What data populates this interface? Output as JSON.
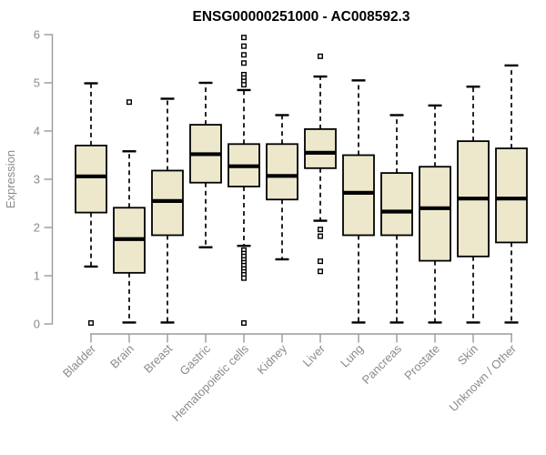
{
  "chart_data": {
    "type": "boxplot",
    "title": "ENSG00000251000 - AC008592.3",
    "xlabel": "",
    "ylabel": "Expression",
    "ylim": [
      0,
      6
    ],
    "yticks": [
      0,
      1,
      2,
      3,
      4,
      5,
      6
    ],
    "grid": false,
    "legend": "none",
    "categories": [
      "Bladder",
      "Brain",
      "Breast",
      "Gastric",
      "Hematopoietic cells",
      "Kidney",
      "Liver",
      "Lung",
      "Pancreas",
      "Prostate",
      "Skin",
      "Unknown / Other"
    ],
    "series": [
      {
        "name": "Bladder",
        "whisker_low": 1.19,
        "q1": 2.31,
        "median": 3.06,
        "q3": 3.7,
        "whisker_high": 4.99,
        "outliers": [
          0.02
        ]
      },
      {
        "name": "Brain",
        "whisker_low": 0.03,
        "q1": 1.06,
        "median": 1.76,
        "q3": 2.41,
        "whisker_high": 3.58,
        "outliers": [
          4.6
        ]
      },
      {
        "name": "Breast",
        "whisker_low": 0.03,
        "q1": 1.84,
        "median": 2.55,
        "q3": 3.18,
        "whisker_high": 4.67,
        "outliers": []
      },
      {
        "name": "Gastric",
        "whisker_low": 1.59,
        "q1": 2.93,
        "median": 3.52,
        "q3": 4.13,
        "whisker_high": 5.0,
        "outliers": []
      },
      {
        "name": "Hematopoietic cells",
        "whisker_low": 1.62,
        "q1": 2.85,
        "median": 3.27,
        "q3": 3.73,
        "whisker_high": 4.85,
        "outliers": [
          5.94,
          5.76,
          5.58,
          5.41,
          5.17,
          5.1,
          5.03,
          4.96,
          1.53,
          1.46,
          1.4,
          1.33,
          1.27,
          1.21,
          1.14,
          1.08,
          1.02,
          0.95,
          0.02
        ]
      },
      {
        "name": "Kidney",
        "whisker_low": 1.34,
        "q1": 2.58,
        "median": 3.07,
        "q3": 3.73,
        "whisker_high": 4.33,
        "outliers": []
      },
      {
        "name": "Liver",
        "whisker_low": 2.14,
        "q1": 3.23,
        "median": 3.55,
        "q3": 4.04,
        "whisker_high": 5.13,
        "outliers": [
          5.55,
          1.96,
          1.82,
          1.3,
          1.09
        ]
      },
      {
        "name": "Lung",
        "whisker_low": 0.03,
        "q1": 1.84,
        "median": 2.72,
        "q3": 3.5,
        "whisker_high": 5.05,
        "outliers": []
      },
      {
        "name": "Pancreas",
        "whisker_low": 0.03,
        "q1": 1.84,
        "median": 2.33,
        "q3": 3.13,
        "whisker_high": 4.33,
        "outliers": []
      },
      {
        "name": "Prostate",
        "whisker_low": 0.03,
        "q1": 1.31,
        "median": 2.4,
        "q3": 3.26,
        "whisker_high": 4.53,
        "outliers": []
      },
      {
        "name": "Skin",
        "whisker_low": 0.03,
        "q1": 1.4,
        "median": 2.6,
        "q3": 3.79,
        "whisker_high": 4.92,
        "outliers": []
      },
      {
        "name": "Unknown / Other",
        "whisker_low": 0.03,
        "q1": 1.69,
        "median": 2.6,
        "q3": 3.64,
        "whisker_high": 5.36,
        "outliers": []
      }
    ],
    "colors": {
      "box_fill": "#EDE8CC",
      "box_border": "#000000",
      "median": "#000000",
      "whisker": "#000000",
      "outlier_stroke": "#000000",
      "outlier_fill": "#FFFFFF",
      "axis_line": "#9A9A9A",
      "tick_label": "#8B8B8B",
      "title": "#000000",
      "background": "#FFFFFF"
    }
  }
}
